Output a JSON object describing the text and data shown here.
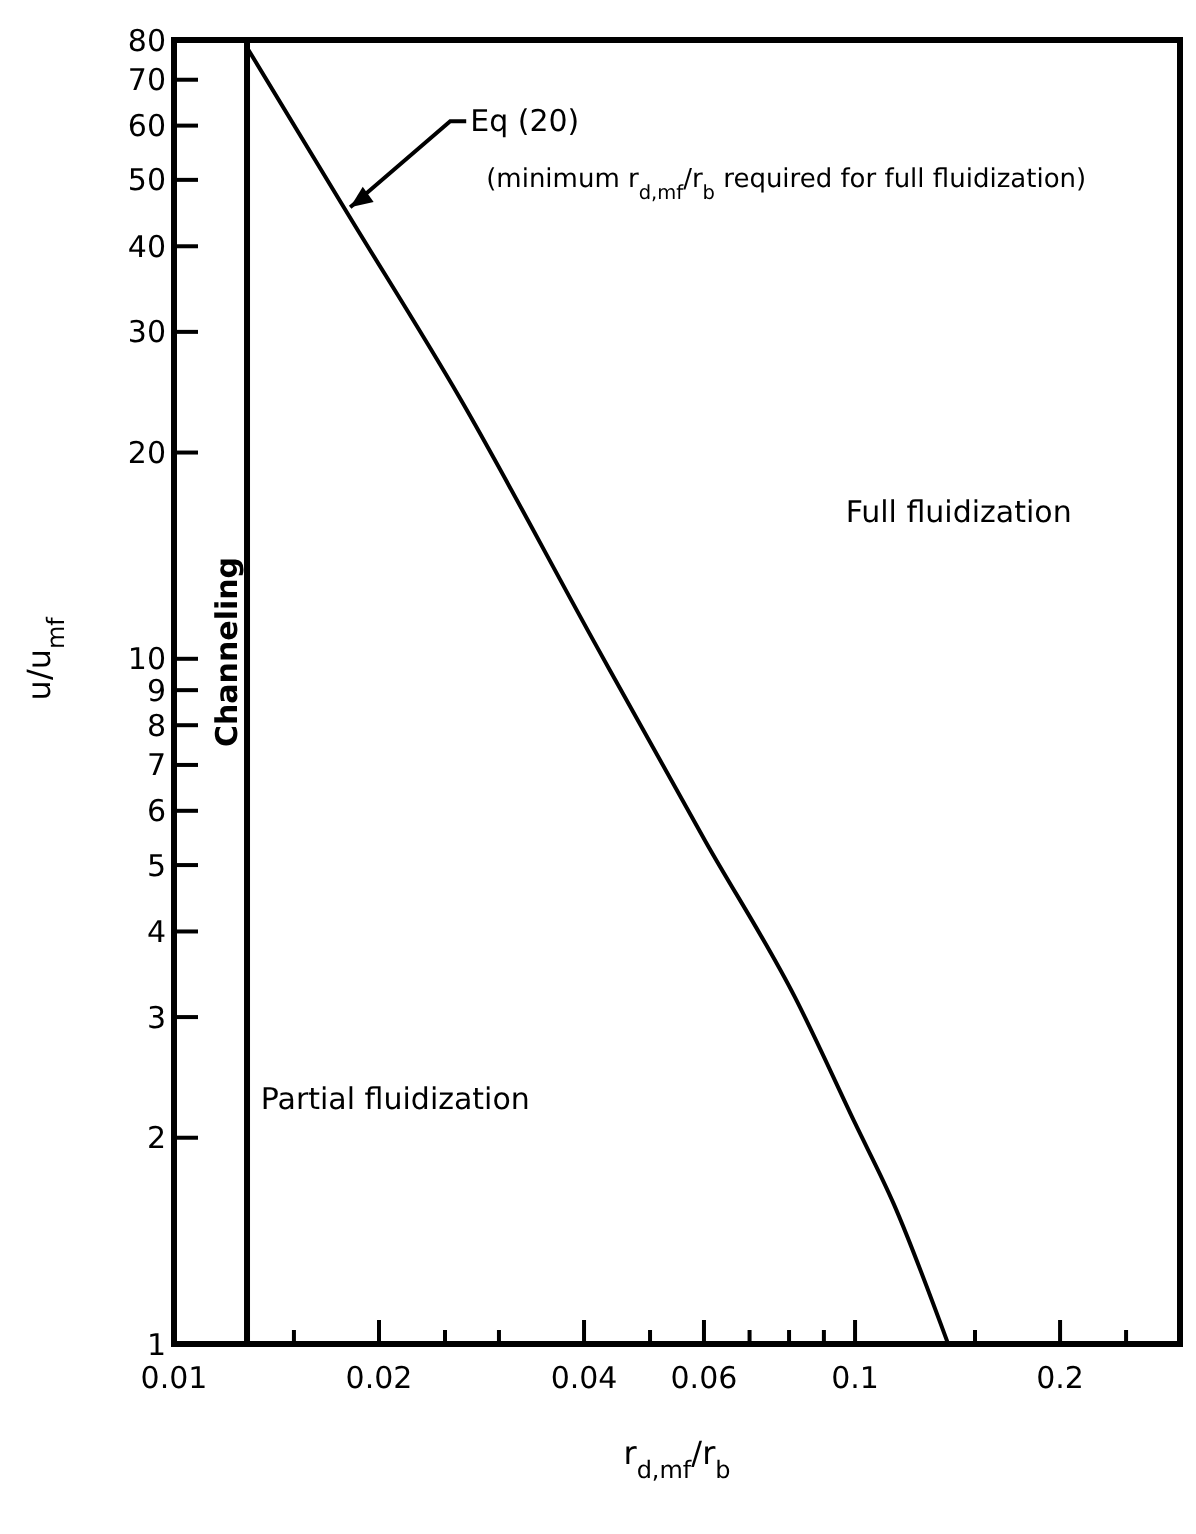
{
  "chart_data": {
    "type": "line",
    "xlabel": "r$_{d,mf}$/r$_{b}$",
    "ylabel": "u/u$_{mf}$",
    "log": "xy",
    "xlim": [
      0.01,
      0.3
    ],
    "ylim": [
      1,
      80
    ],
    "xticks": [
      0.01,
      {
        "value": 0.015,
        "label": null
      },
      0.02,
      {
        "value": 0.025,
        "label": null
      },
      {
        "value": 0.03,
        "label": null
      },
      0.04,
      {
        "value": 0.05,
        "label": null
      },
      0.06,
      {
        "value": 0.07,
        "label": null
      },
      {
        "value": 0.08,
        "label": null
      },
      {
        "value": 0.09,
        "label": null
      },
      0.1,
      {
        "value": 0.15,
        "label": null
      },
      0.2,
      {
        "value": 0.25,
        "label": null
      },
      {
        "value": 0.3,
        "label": null
      }
    ],
    "yticks": [
      1,
      2,
      3,
      4,
      5,
      6,
      7,
      8,
      9,
      10,
      20,
      30,
      40,
      50,
      60,
      70,
      80
    ],
    "series": [
      {
        "color": "#000000",
        "x": [
          0.0128,
          0.0179,
          0.0263,
          0.0418,
          0.0604,
          0.0817,
          0.1,
          0.114,
          0.137
        ],
        "values": [
          78,
          45,
          24,
          10.4,
          5.4,
          3.2,
          2.1,
          1.6,
          1
        ]
      }
    ],
    "ref_lines": [
      {
        "axis": "x",
        "value": 0.0128,
        "label": "Channeling",
        "color": "#000000"
      }
    ],
    "annotations": [
      {
        "text": "Eq (20)",
        "x": 0.0179,
        "y": 45
      },
      "(minimum r$_{d,mf}$/r$_{b}$ required for full fluidization)",
      "Full fluidization",
      "Partial fluidization"
    ],
    "grid": false,
    "marker": "none",
    "line_style": "solid"
  }
}
